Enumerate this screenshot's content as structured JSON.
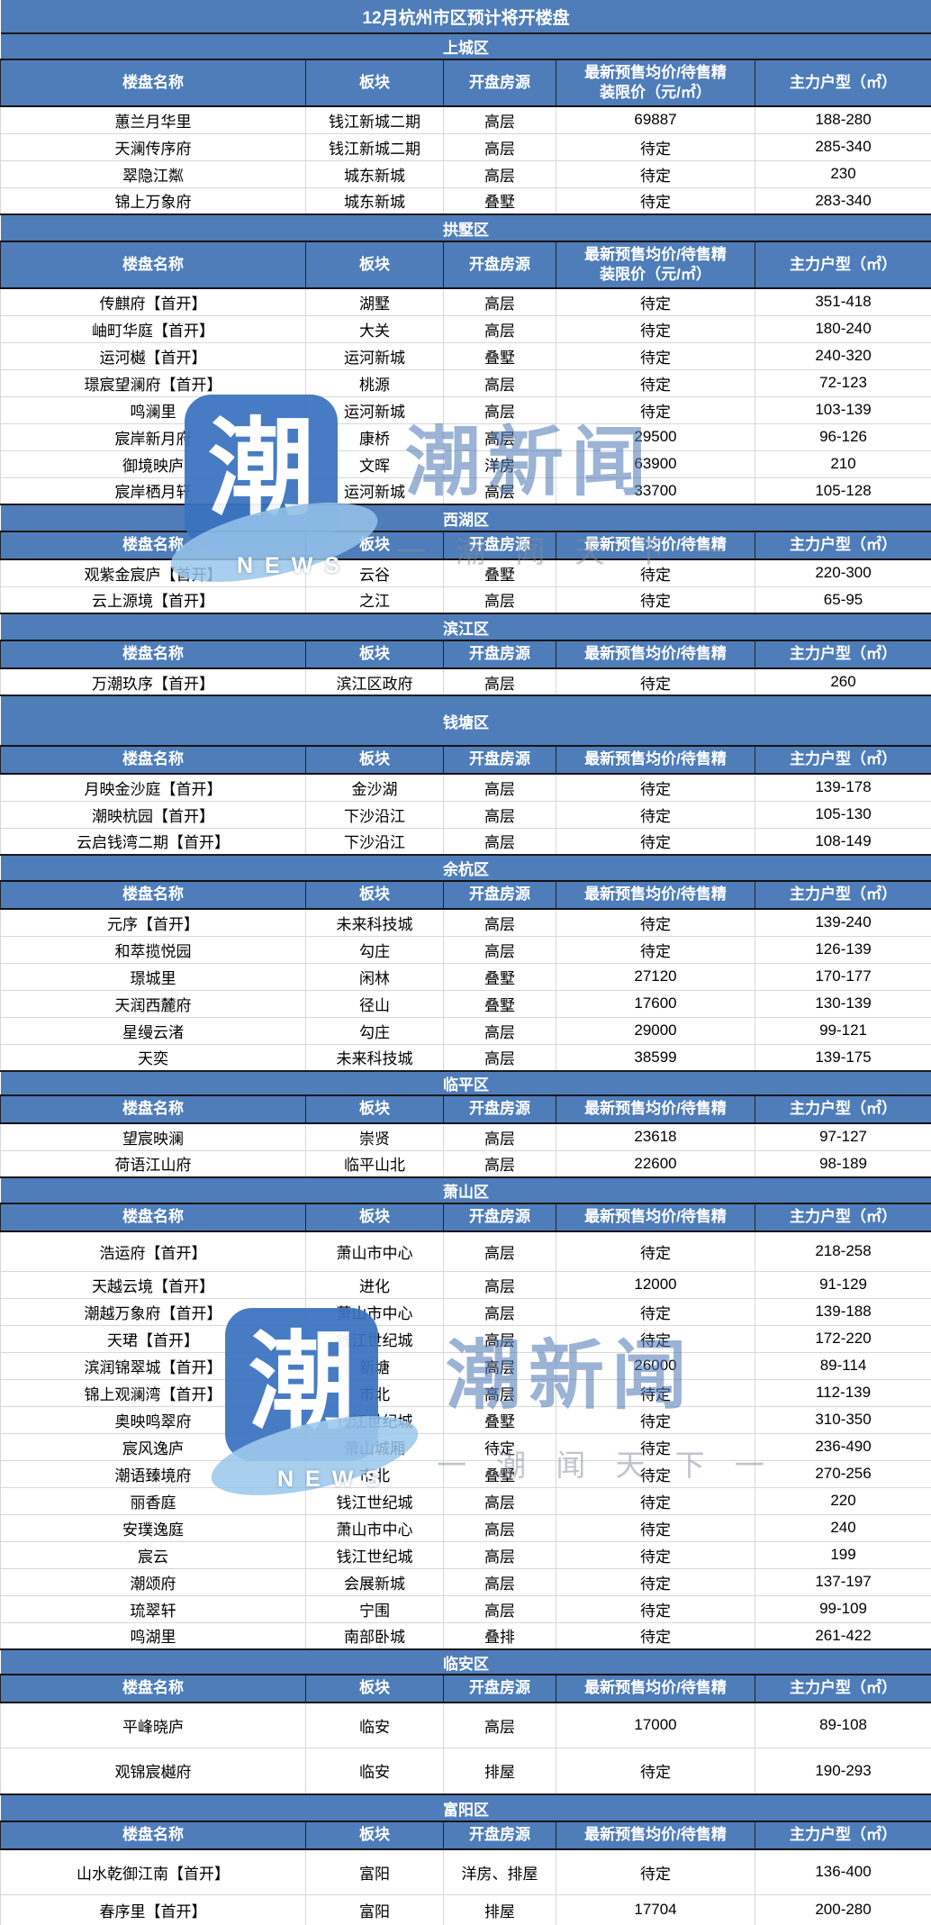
{
  "chart_data": {
    "type": "table",
    "title": "12月杭州市区预计将开楼盘",
    "columns": {
      "name": "楼盘名称",
      "area": "板块",
      "type": "开盘房源",
      "price_line1": "最新预售均价/待售精",
      "price_line2": "装限价（元/㎡）",
      "price_full": "最新预售均价/待售精装限价（元/㎡）",
      "layout": "主力户型（㎡）"
    },
    "sections": [
      {
        "district": "上城区",
        "header_style": "two-line",
        "rows": [
          [
            "蕙兰月华里",
            "钱江新城二期",
            "高层",
            "69887",
            "188-280"
          ],
          [
            "天澜传序府",
            "钱江新城二期",
            "高层",
            "待定",
            "285-340"
          ],
          [
            "翠隐江粼",
            "城东新城",
            "高层",
            "待定",
            "230"
          ],
          [
            "锦上万象府",
            "城东新城",
            "叠墅",
            "待定",
            "283-340"
          ]
        ]
      },
      {
        "district": "拱墅区",
        "header_style": "two-line",
        "rows": [
          [
            "传麒府【首开】",
            "湖墅",
            "高层",
            "待定",
            "351-418"
          ],
          [
            "岫町华庭【首开】",
            "大关",
            "高层",
            "待定",
            "180-240"
          ],
          [
            "运河樾【首开】",
            "运河新城",
            "叠墅",
            "待定",
            "240-320"
          ],
          [
            "璟宸望澜府【首开】",
            "桃源",
            "高层",
            "待定",
            "72-123"
          ],
          [
            "鸣澜里",
            "运河新城",
            "高层",
            "待定",
            "103-139"
          ],
          [
            "宸岸新月府",
            "康桥",
            "高层",
            "29500",
            "96-126"
          ],
          [
            "御境映庐",
            "文晖",
            "洋房",
            "63900",
            "210"
          ],
          [
            "宸岸栖月轩",
            "运河新城",
            "高层",
            "33700",
            "105-128"
          ]
        ]
      },
      {
        "district": "西湖区",
        "header_style": "one-line",
        "rows": [
          [
            "观紫金宸庐【首开】",
            "云谷",
            "叠墅",
            "待定",
            "220-300"
          ],
          [
            "云上源境【首开】",
            "之江",
            "高层",
            "待定",
            "65-95"
          ]
        ]
      },
      {
        "district": "滨江区",
        "header_style": "one-line",
        "rows": [
          [
            "万潮玖序【首开】",
            "滨江区政府",
            "高层",
            "待定",
            "260"
          ]
        ]
      },
      {
        "district": "钱塘区",
        "header_style": "one-line",
        "rows": [
          [
            "月映金沙庭【首开】",
            "金沙湖",
            "高层",
            "待定",
            "139-178"
          ],
          [
            "潮映杭园【首开】",
            "下沙沿江",
            "高层",
            "待定",
            "105-130"
          ],
          [
            "云启钱湾二期【首开】",
            "下沙沿江",
            "高层",
            "待定",
            "108-149"
          ]
        ]
      },
      {
        "district": "余杭区",
        "header_style": "one-line",
        "rows": [
          [
            "元序【首开】",
            "未来科技城",
            "高层",
            "待定",
            "139-240"
          ],
          [
            "和萃揽悦园",
            "勾庄",
            "高层",
            "待定",
            "126-139"
          ],
          [
            "璟城里",
            "闲林",
            "叠墅",
            "27120",
            "170-177"
          ],
          [
            "天润西麓府",
            "径山",
            "叠墅",
            "17600",
            "130-139"
          ],
          [
            "星缦云渚",
            "勾庄",
            "高层",
            "29000",
            "99-121"
          ],
          [
            "天奕",
            "未来科技城",
            "高层",
            "38599",
            "139-175"
          ]
        ]
      },
      {
        "district": "临平区",
        "header_style": "one-line",
        "rows": [
          [
            "望宸映澜",
            "崇贤",
            "高层",
            "23618",
            "97-127"
          ],
          [
            "荷语江山府",
            "临平山北",
            "高层",
            "22600",
            "98-189"
          ]
        ]
      },
      {
        "district": "萧山区",
        "header_style": "one-line",
        "rows": [
          [
            "浩运府【首开】",
            "萧山市中心",
            "高层",
            "待定",
            "218-258"
          ],
          [
            "天越云境【首开】",
            "进化",
            "高层",
            "12000",
            "91-129"
          ],
          [
            "潮越万象府【首开】",
            "萧山市中心",
            "高层",
            "待定",
            "139-188"
          ],
          [
            "天珺【首开】",
            "钱江世纪城",
            "高层",
            "待定",
            "172-220"
          ],
          [
            "滨润锦翠城【首开】",
            "新塘",
            "高层",
            "26000",
            "89-114"
          ],
          [
            "锦上观澜湾【首开】",
            "市北",
            "高层",
            "待定",
            "112-139"
          ],
          [
            "奥映鸣翠府",
            "钱江世纪城",
            "叠墅",
            "待定",
            "310-350"
          ],
          [
            "宸风逸庐",
            "萧山城厢",
            "待定",
            "待定",
            "236-490"
          ],
          [
            "潮语臻境府",
            "市北",
            "叠墅",
            "待定",
            "270-256"
          ],
          [
            "丽香庭",
            "钱江世纪城",
            "高层",
            "待定",
            "220"
          ],
          [
            "安璞逸庭",
            "萧山市中心",
            "高层",
            "待定",
            "240"
          ],
          [
            "宸云",
            "钱江世纪城",
            "高层",
            "待定",
            "199"
          ],
          [
            "潮颂府",
            "会展新城",
            "高层",
            "待定",
            "137-197"
          ],
          [
            "琉翠轩",
            "宁围",
            "高层",
            "待定",
            "99-109"
          ],
          [
            "鸣湖里",
            "南部卧城",
            "叠排",
            "待定",
            "261-422"
          ]
        ]
      },
      {
        "district": "临安区",
        "header_style": "one-line",
        "rows": [
          [
            "平峰晓庐",
            "临安",
            "高层",
            "17000",
            "89-108"
          ],
          [
            "观锦宸樾府",
            "临安",
            "排屋",
            "待定",
            "190-293"
          ]
        ]
      },
      {
        "district": "富阳区",
        "header_style": "one-line",
        "rows": [
          [
            "山水乾御江南【首开】",
            "富阳",
            "洋房、排屋",
            "待定",
            "136-400"
          ],
          [
            "春序里【首开】",
            "富阳",
            "排屋",
            "17704",
            "200-280"
          ]
        ]
      }
    ]
  },
  "watermark": {
    "logo_char": "潮",
    "brand": "潮新闻",
    "news": "NEWS",
    "slogan": "一 潮 闻 天 下 一"
  },
  "colors": {
    "header_blue": "#4e7dba",
    "logo_blue": "#3a73c0",
    "row_border": "#d8d8d8",
    "dark_border": "#1b1b1b"
  }
}
